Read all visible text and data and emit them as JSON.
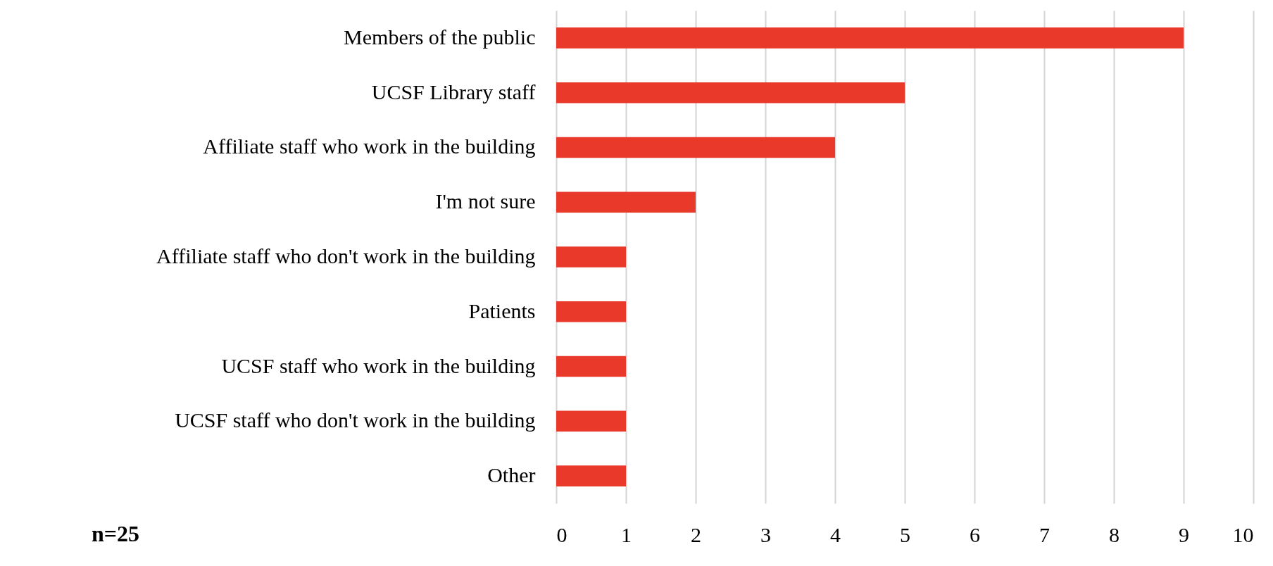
{
  "chart_data": {
    "type": "bar",
    "orientation": "horizontal",
    "categories": [
      "Members of the public",
      "UCSF Library staff",
      "Affiliate staff who work in the building",
      "I'm not sure",
      "Affiliate staff who don't work in the building",
      "Patients",
      "UCSF staff who work in the building",
      "UCSF staff who don't work in the building",
      "Other"
    ],
    "values": [
      9,
      5,
      4,
      2,
      1,
      1,
      1,
      1,
      1
    ],
    "color": "#e8392a",
    "xlim": [
      0,
      10
    ],
    "xticks": [
      0,
      1,
      2,
      3,
      4,
      5,
      6,
      7,
      8,
      9,
      10
    ],
    "grid": "x",
    "annotations": [
      "n=25"
    ]
  }
}
